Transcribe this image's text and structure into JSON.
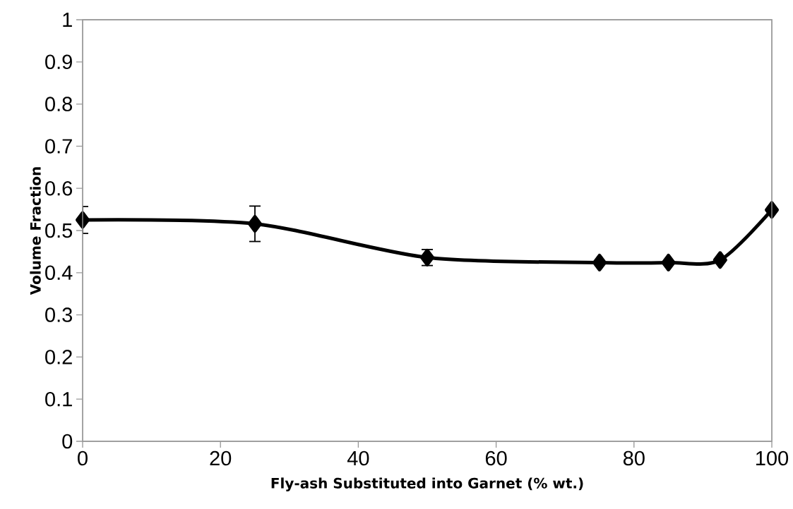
{
  "chart_data": {
    "type": "line",
    "xlabel": "Fly-ash Substituted into Garnet (% wt.)",
    "ylabel": "Volume Fraction",
    "x": [
      0,
      25,
      50,
      75,
      85,
      92.5,
      100
    ],
    "series": [
      {
        "color": "#000000",
        "values": [
          0.525,
          0.516,
          0.436,
          0.424,
          0.424,
          0.43,
          0.549
        ],
        "errors": [
          0.032,
          0.042,
          0.019,
          null,
          null,
          null,
          null
        ]
      }
    ],
    "xlim": [
      0,
      100
    ],
    "xticks": [
      0,
      20,
      40,
      60,
      80,
      100
    ],
    "ylim": [
      0,
      1
    ],
    "yticks": [
      0,
      0.1,
      0.2,
      0.3,
      0.4,
      0.5,
      0.6,
      0.7,
      0.8,
      0.9,
      1
    ],
    "marker": "diamond",
    "line_style": "solid",
    "grid": false,
    "legend": false
  }
}
